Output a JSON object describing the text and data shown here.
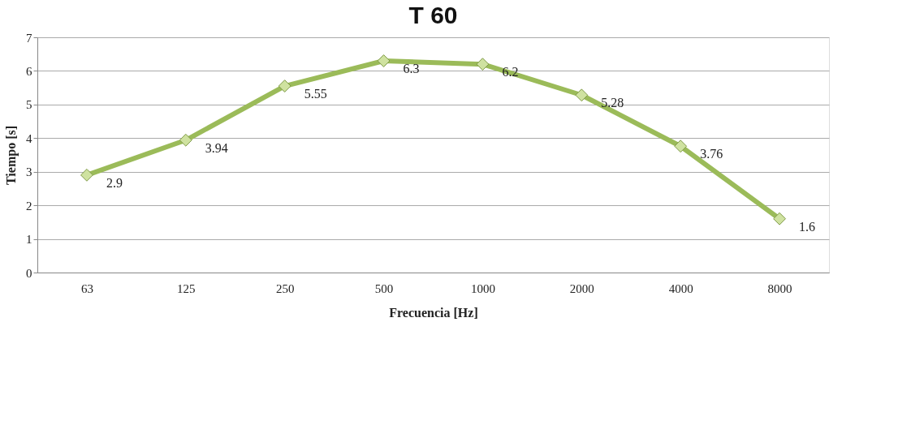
{
  "chart_data": {
    "type": "line",
    "title": "T 60",
    "xlabel": "Frecuencia [Hz]",
    "ylabel": "Tiempo [s]",
    "categories": [
      "63",
      "125",
      "250",
      "500",
      "1000",
      "2000",
      "4000",
      "8000"
    ],
    "series": [
      {
        "color": "#9bbb59",
        "values": [
          2.9,
          3.94,
          5.55,
          6.3,
          6.2,
          5.28,
          3.76,
          1.6
        ]
      }
    ],
    "ylim": [
      0,
      7
    ],
    "yticks": [
      0,
      1,
      2,
      3,
      4,
      5,
      6,
      7
    ],
    "grid": "y",
    "marker": "diamond",
    "line_style": "solid",
    "data_labels": true
  }
}
